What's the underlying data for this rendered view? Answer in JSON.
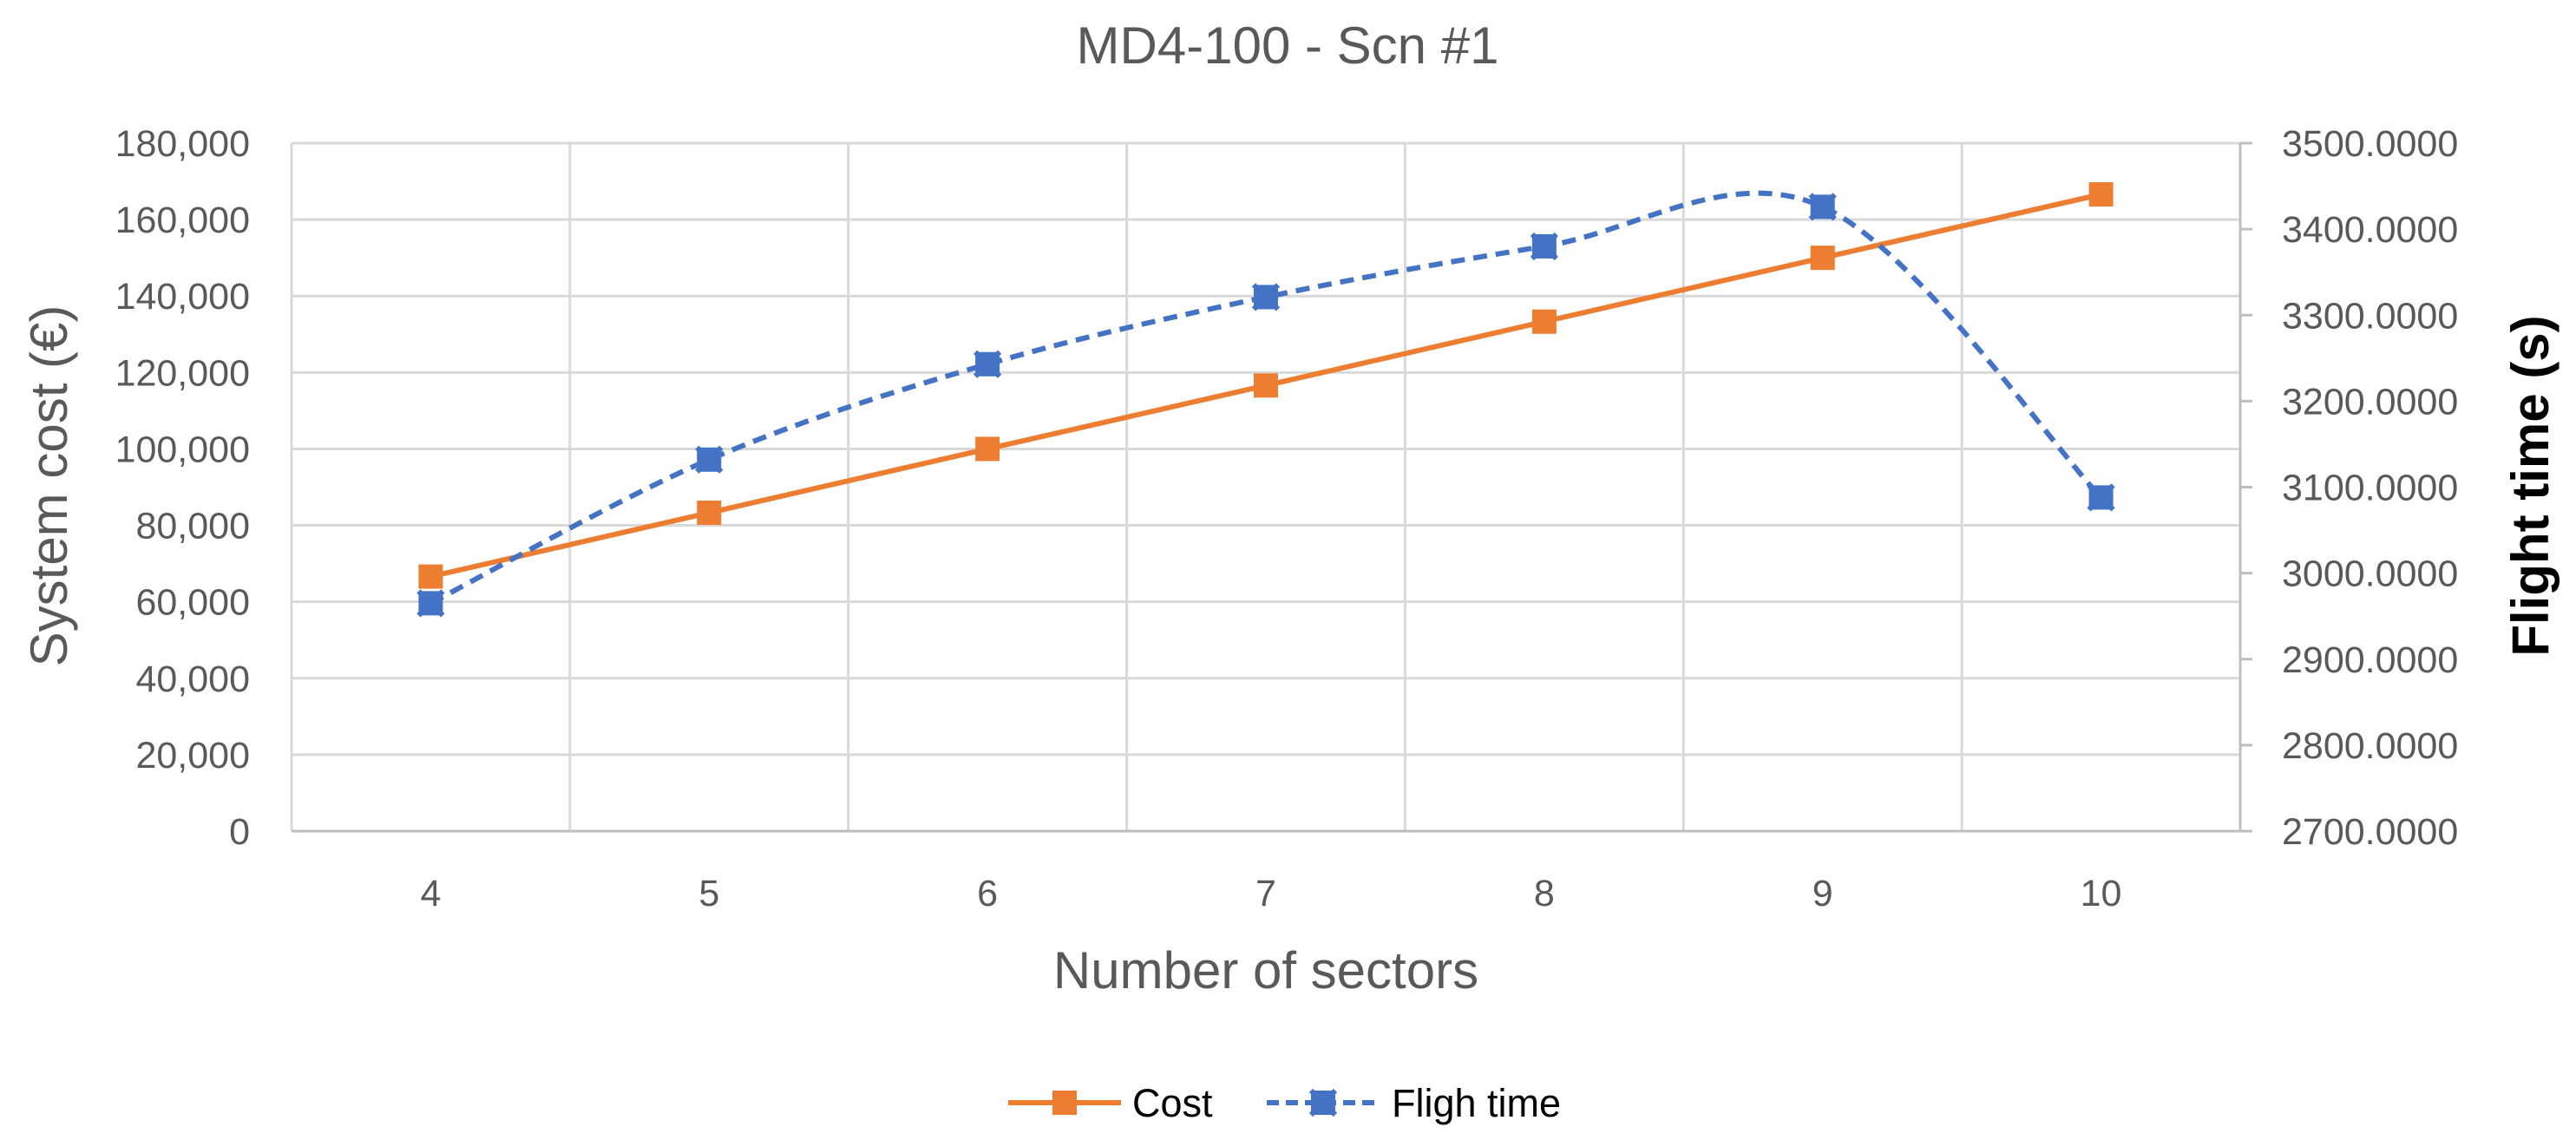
{
  "chart_data": {
    "type": "line",
    "title": "MD4-100 - Scn #1",
    "xlabel": "Number of sectors",
    "ylabel_left": "System cost (€)",
    "ylabel_right": "Flight time (s)",
    "categories": [
      "4",
      "5",
      "6",
      "7",
      "8",
      "9",
      "10"
    ],
    "y_left": {
      "min": 0,
      "max": 180000,
      "step": 20000,
      "tick_labels": [
        "0",
        "20,000",
        "40,000",
        "60,000",
        "80,000",
        "100,000",
        "120,000",
        "140,000",
        "160,000",
        "180,000"
      ]
    },
    "y_right": {
      "min": 2700,
      "max": 3500,
      "step": 100,
      "tick_labels": [
        "2700.0000",
        "2800.0000",
        "2900.0000",
        "3000.0000",
        "3100.0000",
        "3200.0000",
        "3300.0000",
        "3400.0000",
        "3500.0000"
      ]
    },
    "grid": true,
    "legend_position": "bottom",
    "series": [
      {
        "name": "Cost",
        "axis": "left",
        "color": "#ED7D31",
        "line_style": "solid",
        "marker": "square",
        "values": [
          66600,
          83300,
          100000,
          116600,
          133300,
          150000,
          166600
        ]
      },
      {
        "name": "Fligh time",
        "axis": "right",
        "color": "#4472C4",
        "line_style": "dashed",
        "marker": "x-square",
        "values": [
          2965,
          3132,
          3243,
          3321,
          3380,
          3426,
          3088
        ]
      }
    ]
  }
}
